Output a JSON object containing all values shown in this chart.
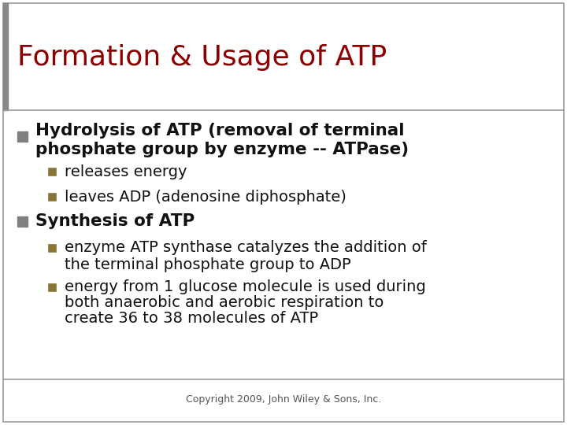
{
  "title": "Formation & Usage of ATP",
  "title_color": "#8B0000",
  "title_fontsize": 26,
  "title_fontweight": "normal",
  "background_color": "#FFFFFF",
  "border_color": "#999999",
  "bullet1_line1": "Hydrolysis of ATP (removal of terminal",
  "bullet1_line2": "phosphate group by enzyme -- ATPase)",
  "bullet1_sub": [
    "releases energy",
    "leaves ADP (adenosine diphosphate)"
  ],
  "bullet2_text": "Synthesis of ATP",
  "bullet2_sub_line1": [
    "enzyme ATP synthase catalyzes the addition of",
    "the terminal phosphate group to ADP"
  ],
  "bullet2_sub_line2": [
    "energy from 1 glucose molecule is used during",
    "both anaerobic and aerobic respiration to",
    "create 36 to 38 molecules of ATP"
  ],
  "square_bullet_color": "#808080",
  "sub_bullet_color": "#8B7536",
  "body_fontsize": 15.5,
  "sub_fontsize": 14.0,
  "copyright_text": "Copyright 2009, John Wiley & Sons, Inc.",
  "copyright_fontsize": 9,
  "title_bar_color": "#888888"
}
